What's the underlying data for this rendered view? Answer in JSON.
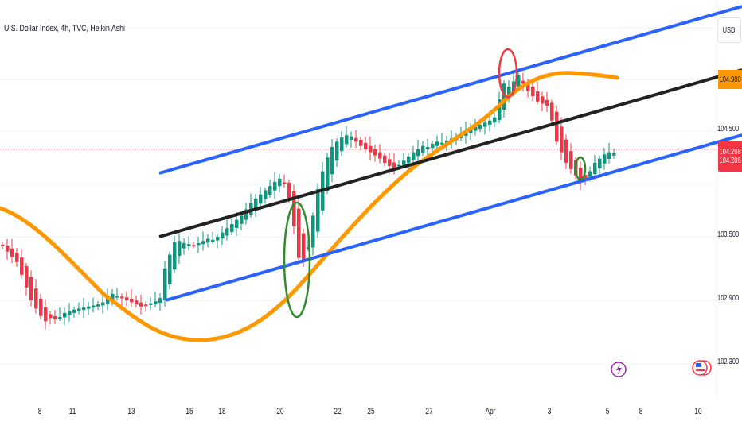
{
  "header": {
    "title": "U.S. Dollar Index, 4h, TVC, Heikin Ashi"
  },
  "price_axis": {
    "currency": "USD",
    "labels": [
      "104.500",
      "103.500",
      "102.900",
      "102.300"
    ],
    "ma_label": "104.980",
    "last_price": "104.298",
    "last_price2": "104.286",
    "colors": {
      "ma": "#ff9800",
      "last": "#f23645"
    }
  },
  "time_axis": {
    "labels": [
      "8",
      "11",
      "13",
      "15",
      "18",
      "20",
      "22",
      "25",
      "27",
      "Apr",
      "3",
      "5",
      "8",
      "10"
    ]
  },
  "icons": {
    "event": "lightning-icon",
    "flag": "us-flag-icon"
  },
  "chart_data": {
    "type": "candlestick",
    "style": "Heikin Ashi",
    "colors": {
      "up": "#089981",
      "down": "#f23645",
      "channel": "#2962ff",
      "midline": "#222222",
      "ma": "#ff9800"
    },
    "closes": [
      103.41,
      103.36,
      103.31,
      103.26,
      103.14,
      103.02,
      102.9,
      102.82,
      102.75,
      102.7,
      102.73,
      102.72,
      102.74,
      102.78,
      102.8,
      102.81,
      102.82,
      102.83,
      102.84,
      102.85,
      102.86,
      102.88,
      102.92,
      102.96,
      102.94,
      102.92,
      102.9,
      102.88,
      102.86,
      102.84,
      102.85,
      102.87,
      102.89,
      102.92,
      103.2,
      103.33,
      103.45,
      103.46,
      103.44,
      103.43,
      103.42,
      103.44,
      103.46,
      103.48,
      103.47,
      103.5,
      103.54,
      103.58,
      103.62,
      103.66,
      103.7,
      103.76,
      103.82,
      103.86,
      103.9,
      103.94,
      103.98,
      104.02,
      104.05,
      104.01,
      103.85,
      103.6,
      103.3,
      103.26,
      103.4,
      103.7,
      103.95,
      104.12,
      104.25,
      104.35,
      104.4,
      104.44,
      104.46,
      104.45,
      104.4,
      104.36,
      104.33,
      104.3,
      104.27,
      104.24,
      104.2,
      104.17,
      104.15,
      104.18,
      104.22,
      104.26,
      104.3,
      104.33,
      104.36,
      104.35,
      104.38,
      104.4,
      104.39,
      104.41,
      104.43,
      104.45,
      104.48,
      104.5,
      104.53,
      104.54,
      104.56,
      104.58,
      104.6,
      104.63,
      104.8,
      104.95,
      104.92,
      104.97,
      105.03,
      104.95,
      104.88,
      104.83,
      104.78,
      104.76,
      104.74,
      104.6,
      104.4,
      104.3,
      104.2,
      104.14,
      104.08,
      104.02,
      104.05,
      104.12,
      104.2,
      104.24,
      104.28,
      104.3,
      104.29
    ]
  }
}
